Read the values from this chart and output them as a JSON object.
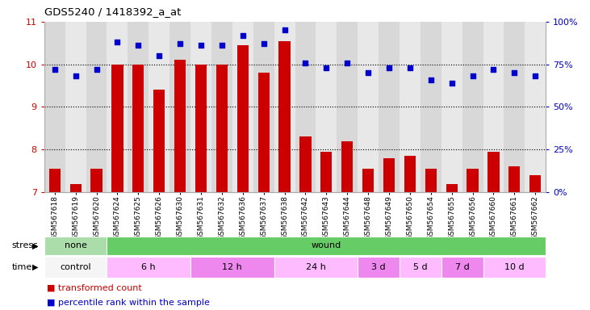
{
  "title": "GDS5240 / 1418392_a_at",
  "samples": [
    "GSM567618",
    "GSM567619",
    "GSM567620",
    "GSM567624",
    "GSM567625",
    "GSM567626",
    "GSM567630",
    "GSM567631",
    "GSM567632",
    "GSM567636",
    "GSM567637",
    "GSM567638",
    "GSM567642",
    "GSM567643",
    "GSM567644",
    "GSM567648",
    "GSM567649",
    "GSM567650",
    "GSM567654",
    "GSM567655",
    "GSM567656",
    "GSM567660",
    "GSM567661",
    "GSM567662"
  ],
  "bar_values": [
    7.55,
    7.2,
    7.55,
    10.0,
    10.0,
    9.4,
    10.1,
    10.0,
    10.0,
    10.45,
    9.8,
    10.55,
    8.3,
    7.95,
    8.2,
    7.55,
    7.8,
    7.85,
    7.55,
    7.2,
    7.55,
    7.95,
    7.6,
    7.4
  ],
  "dot_values": [
    72,
    68,
    72,
    88,
    86,
    80,
    87,
    86,
    86,
    92,
    87,
    95,
    76,
    73,
    76,
    70,
    73,
    73,
    66,
    64,
    68,
    72,
    70,
    68
  ],
  "bar_color": "#cc0000",
  "dot_color": "#0000cc",
  "ylim_left": [
    7,
    11
  ],
  "ylim_right": [
    0,
    100
  ],
  "yticks_left": [
    7,
    8,
    9,
    10,
    11
  ],
  "yticks_right": [
    0,
    25,
    50,
    75,
    100
  ],
  "ytick_labels_right": [
    "0%",
    "25%",
    "50%",
    "75%",
    "100%"
  ],
  "stress_groups": [
    {
      "label": "none",
      "start": 0,
      "end": 3,
      "color": "#aaddaa"
    },
    {
      "label": "wound",
      "start": 3,
      "end": 24,
      "color": "#66cc66"
    }
  ],
  "time_groups": [
    {
      "label": "control",
      "start": 0,
      "end": 3,
      "color": "#f5f5f5"
    },
    {
      "label": "6 h",
      "start": 3,
      "end": 7,
      "color": "#ffbbff"
    },
    {
      "label": "12 h",
      "start": 7,
      "end": 11,
      "color": "#ee88ee"
    },
    {
      "label": "24 h",
      "start": 11,
      "end": 15,
      "color": "#ffbbff"
    },
    {
      "label": "3 d",
      "start": 15,
      "end": 17,
      "color": "#ee88ee"
    },
    {
      "label": "5 d",
      "start": 17,
      "end": 19,
      "color": "#ffbbff"
    },
    {
      "label": "7 d",
      "start": 19,
      "end": 21,
      "color": "#ee88ee"
    },
    {
      "label": "10 d",
      "start": 21,
      "end": 24,
      "color": "#ffbbff"
    }
  ],
  "col_colors": [
    "#d8d8d8",
    "#e8e8e8"
  ],
  "legend_items": [
    {
      "color": "#cc0000",
      "label": "transformed count"
    },
    {
      "color": "#0000cc",
      "label": "percentile rank within the sample"
    }
  ]
}
